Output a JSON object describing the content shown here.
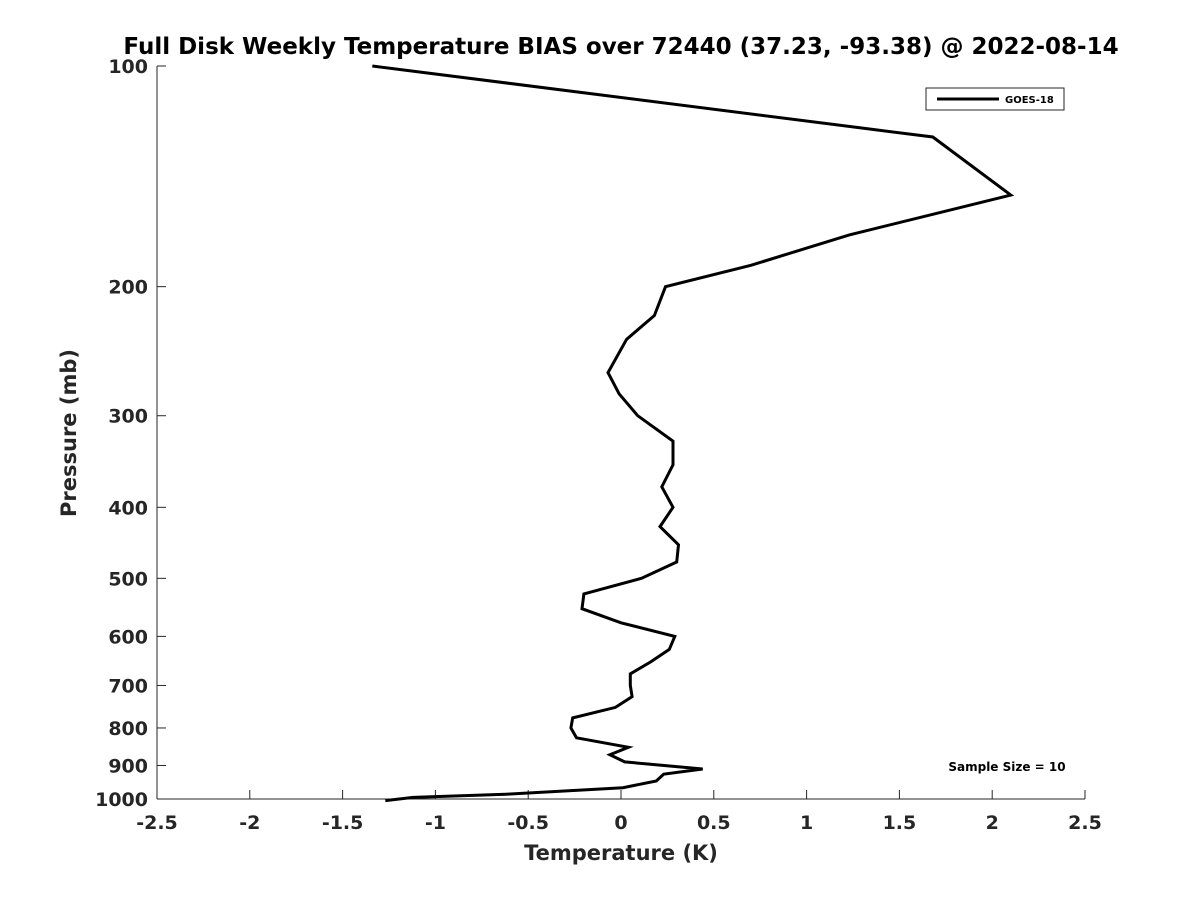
{
  "chart_data": {
    "type": "line",
    "title": "Full Disk Weekly Temperature BIAS over 72440 (37.23, -93.38) @ 2022-08-14",
    "xlabel": "Temperature (K)",
    "ylabel": "Pressure (mb)",
    "xlim": [
      -2.5,
      2.5
    ],
    "ylim": [
      100,
      1000
    ],
    "y_scale": "log",
    "y_reversed": true,
    "grid": false,
    "x_ticks": [
      {
        "value": -2.5,
        "label": "-2.5"
      },
      {
        "value": -2,
        "label": "-2"
      },
      {
        "value": -1.5,
        "label": "-1.5"
      },
      {
        "value": -1,
        "label": "-1"
      },
      {
        "value": -0.5,
        "label": "-0.5"
      },
      {
        "value": 0,
        "label": "0"
      },
      {
        "value": 0.5,
        "label": "0.5"
      },
      {
        "value": 1,
        "label": "1"
      },
      {
        "value": 1.5,
        "label": "1.5"
      },
      {
        "value": 2,
        "label": "2"
      },
      {
        "value": 2.5,
        "label": "2.5"
      }
    ],
    "y_ticks": [
      {
        "value": 100,
        "label": "100"
      },
      {
        "value": 200,
        "label": "200"
      },
      {
        "value": 300,
        "label": "300"
      },
      {
        "value": 400,
        "label": "400"
      },
      {
        "value": 500,
        "label": "500"
      },
      {
        "value": 600,
        "label": "600"
      },
      {
        "value": 700,
        "label": "700"
      },
      {
        "value": 800,
        "label": "800"
      },
      {
        "value": 900,
        "label": "900"
      },
      {
        "value": 1000,
        "label": "1000"
      }
    ],
    "legend_position": "top-right",
    "series": [
      {
        "name": "GOES-18",
        "color": "#000000",
        "points": [
          {
            "x": -1.34,
            "y": 100
          },
          {
            "x": 1.68,
            "y": 125
          },
          {
            "x": 2.1,
            "y": 150
          },
          {
            "x": 1.23,
            "y": 170
          },
          {
            "x": 0.7,
            "y": 187
          },
          {
            "x": 0.24,
            "y": 200
          },
          {
            "x": 0.18,
            "y": 219
          },
          {
            "x": 0.03,
            "y": 236
          },
          {
            "x": -0.07,
            "y": 262
          },
          {
            "x": -0.01,
            "y": 280
          },
          {
            "x": 0.09,
            "y": 300
          },
          {
            "x": 0.28,
            "y": 325
          },
          {
            "x": 0.28,
            "y": 350
          },
          {
            "x": 0.22,
            "y": 375
          },
          {
            "x": 0.28,
            "y": 400
          },
          {
            "x": 0.21,
            "y": 425
          },
          {
            "x": 0.31,
            "y": 450
          },
          {
            "x": 0.3,
            "y": 475
          },
          {
            "x": 0.11,
            "y": 500
          },
          {
            "x": -0.2,
            "y": 525
          },
          {
            "x": -0.21,
            "y": 550
          },
          {
            "x": 0.0,
            "y": 575
          },
          {
            "x": 0.29,
            "y": 600
          },
          {
            "x": 0.26,
            "y": 625
          },
          {
            "x": 0.16,
            "y": 650
          },
          {
            "x": 0.05,
            "y": 675
          },
          {
            "x": 0.05,
            "y": 700
          },
          {
            "x": 0.06,
            "y": 725
          },
          {
            "x": -0.03,
            "y": 750
          },
          {
            "x": -0.26,
            "y": 775
          },
          {
            "x": -0.27,
            "y": 800
          },
          {
            "x": -0.24,
            "y": 825
          },
          {
            "x": 0.04,
            "y": 850
          },
          {
            "x": -0.06,
            "y": 870
          },
          {
            "x": 0.02,
            "y": 890
          },
          {
            "x": 0.44,
            "y": 910
          },
          {
            "x": 0.23,
            "y": 925
          },
          {
            "x": 0.19,
            "y": 945
          },
          {
            "x": 0.01,
            "y": 965
          },
          {
            "x": -0.62,
            "y": 985
          },
          {
            "x": -1.12,
            "y": 995
          },
          {
            "x": -1.27,
            "y": 1005
          }
        ]
      }
    ],
    "annotations": [
      {
        "text": "Sample Size = 10",
        "position": "bottom-right"
      }
    ]
  }
}
